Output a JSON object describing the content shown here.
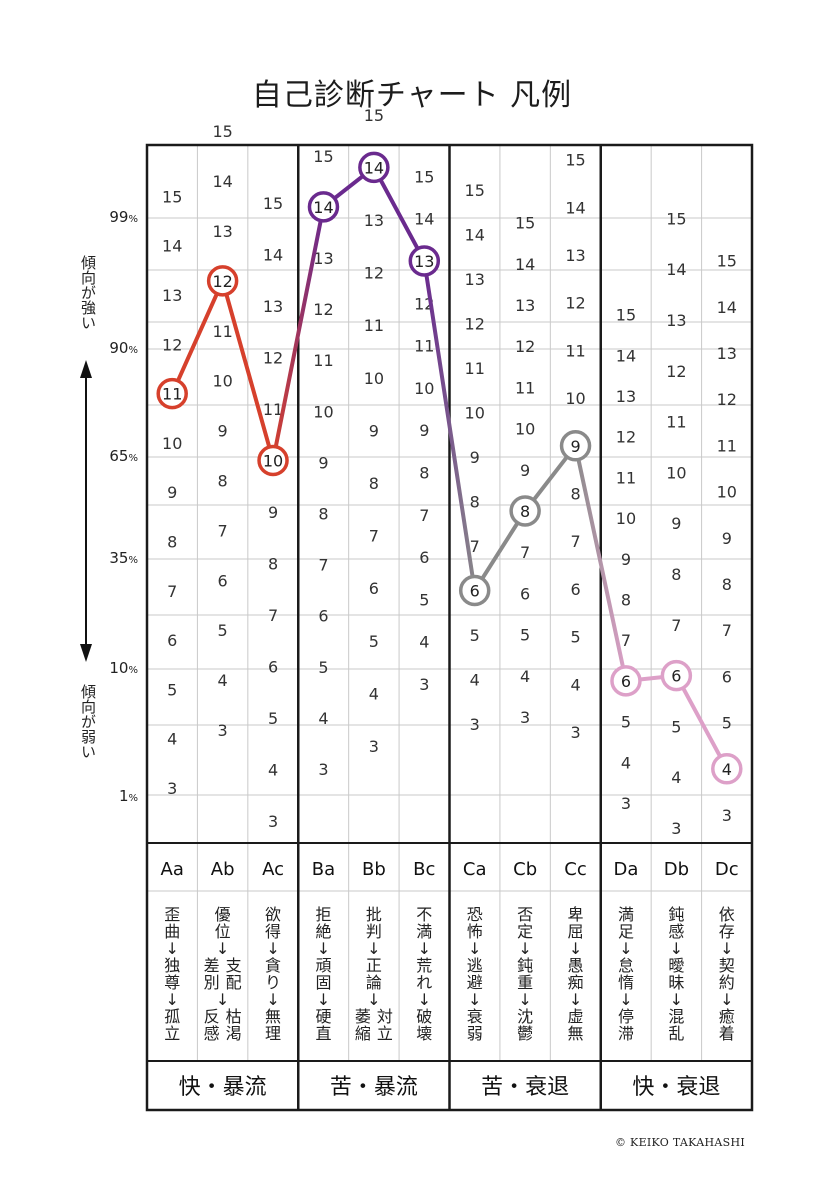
{
  "title": "自己診断チャート 凡例",
  "left_axis": {
    "percent_labels": [
      {
        "num": "99",
        "unit": "%"
      },
      {
        "num": "90",
        "unit": "%"
      },
      {
        "num": "65",
        "unit": "%"
      },
      {
        "num": "35",
        "unit": "%"
      },
      {
        "num": "10",
        "unit": "%"
      },
      {
        "num": "1",
        "unit": "%"
      }
    ],
    "strong_label": "傾向が強い",
    "weak_label": "傾向が弱い"
  },
  "copyright": "© KEIKO TAKAHASHI",
  "chart_data": {
    "type": "line",
    "groups": [
      {
        "name": "快・暴流",
        "codes": [
          "Aa",
          "Ab",
          "Ac"
        ]
      },
      {
        "name": "苦・暴流",
        "codes": [
          "Ba",
          "Bb",
          "Bc"
        ]
      },
      {
        "name": "苦・衰退",
        "codes": [
          "Ca",
          "Cb",
          "Cc"
        ]
      },
      {
        "name": "快・衰退",
        "codes": [
          "Da",
          "Db",
          "Dc"
        ]
      }
    ],
    "columns": [
      {
        "code": "Aa",
        "words": [
          [
            "歪曲"
          ],
          [
            "独尊"
          ],
          [
            "孤立"
          ]
        ],
        "scale": [
          3,
          4,
          5,
          6,
          7,
          8,
          9,
          10,
          11,
          12,
          13,
          14,
          15
        ],
        "score": 11
      },
      {
        "code": "Ab",
        "words": [
          [
            "優位"
          ],
          [
            "支配",
            "差別"
          ],
          [
            "枯渇",
            "反感"
          ]
        ],
        "scale": [
          3,
          4,
          5,
          6,
          7,
          8,
          9,
          10,
          11,
          12,
          13,
          14,
          15
        ],
        "score": 12
      },
      {
        "code": "Ac",
        "words": [
          [
            "欲得"
          ],
          [
            "貪り"
          ],
          [
            "無理"
          ]
        ],
        "scale": [
          3,
          4,
          5,
          6,
          7,
          8,
          9,
          10,
          11,
          12,
          13,
          14,
          15
        ],
        "score": 10
      },
      {
        "code": "Ba",
        "words": [
          [
            "拒絶"
          ],
          [
            "頑固"
          ],
          [
            "硬直"
          ]
        ],
        "scale": [
          3,
          4,
          5,
          6,
          7,
          8,
          9,
          10,
          11,
          12,
          13,
          14,
          15
        ],
        "score": 14
      },
      {
        "code": "Bb",
        "words": [
          [
            "批判"
          ],
          [
            "正論"
          ],
          [
            "対立",
            "萎縮"
          ]
        ],
        "scale": [
          3,
          4,
          5,
          6,
          7,
          8,
          9,
          10,
          11,
          12,
          13,
          14,
          15
        ],
        "score": 14
      },
      {
        "code": "Bc",
        "words": [
          [
            "不満"
          ],
          [
            "荒れ"
          ],
          [
            "破壊"
          ]
        ],
        "scale": [
          3,
          4,
          5,
          6,
          7,
          8,
          9,
          10,
          11,
          12,
          13,
          14,
          15
        ],
        "score": 13
      },
      {
        "code": "Ca",
        "words": [
          [
            "恐怖"
          ],
          [
            "逃避"
          ],
          [
            "衰弱"
          ]
        ],
        "scale": [
          3,
          4,
          5,
          6,
          7,
          8,
          9,
          10,
          11,
          12,
          13,
          14,
          15
        ],
        "score": 6
      },
      {
        "code": "Cb",
        "words": [
          [
            "否定"
          ],
          [
            "鈍重"
          ],
          [
            "沈鬱"
          ]
        ],
        "scale": [
          3,
          4,
          5,
          6,
          7,
          8,
          9,
          10,
          11,
          12,
          13,
          14,
          15
        ],
        "score": 8
      },
      {
        "code": "Cc",
        "words": [
          [
            "卑屈"
          ],
          [
            "愚痴"
          ],
          [
            "虚無"
          ]
        ],
        "scale": [
          3,
          4,
          5,
          6,
          7,
          8,
          9,
          10,
          11,
          12,
          13,
          14,
          15
        ],
        "score": 9
      },
      {
        "code": "Da",
        "words": [
          [
            "満足"
          ],
          [
            "怠惰"
          ],
          [
            "停滞"
          ]
        ],
        "scale": [
          3,
          4,
          5,
          6,
          7,
          8,
          9,
          10,
          11,
          12,
          13,
          14,
          15
        ],
        "score": 6
      },
      {
        "code": "Db",
        "words": [
          [
            "鈍感"
          ],
          [
            "曖昧"
          ],
          [
            "混乱"
          ]
        ],
        "scale": [
          3,
          4,
          5,
          6,
          7,
          8,
          9,
          10,
          11,
          12,
          13,
          14,
          15
        ],
        "score": 6
      },
      {
        "code": "Dc",
        "words": [
          [
            "依存"
          ],
          [
            "契約"
          ],
          [
            "癒着"
          ]
        ],
        "scale": [
          3,
          4,
          5,
          6,
          7,
          8,
          9,
          10,
          11,
          12,
          13,
          14,
          15
        ],
        "score": 4
      }
    ],
    "arrow": "↓",
    "separator": "・",
    "series_colors": [
      "#d6402c",
      "#6a2a8e",
      "#8a8a8a",
      "#dda0c8"
    ]
  }
}
